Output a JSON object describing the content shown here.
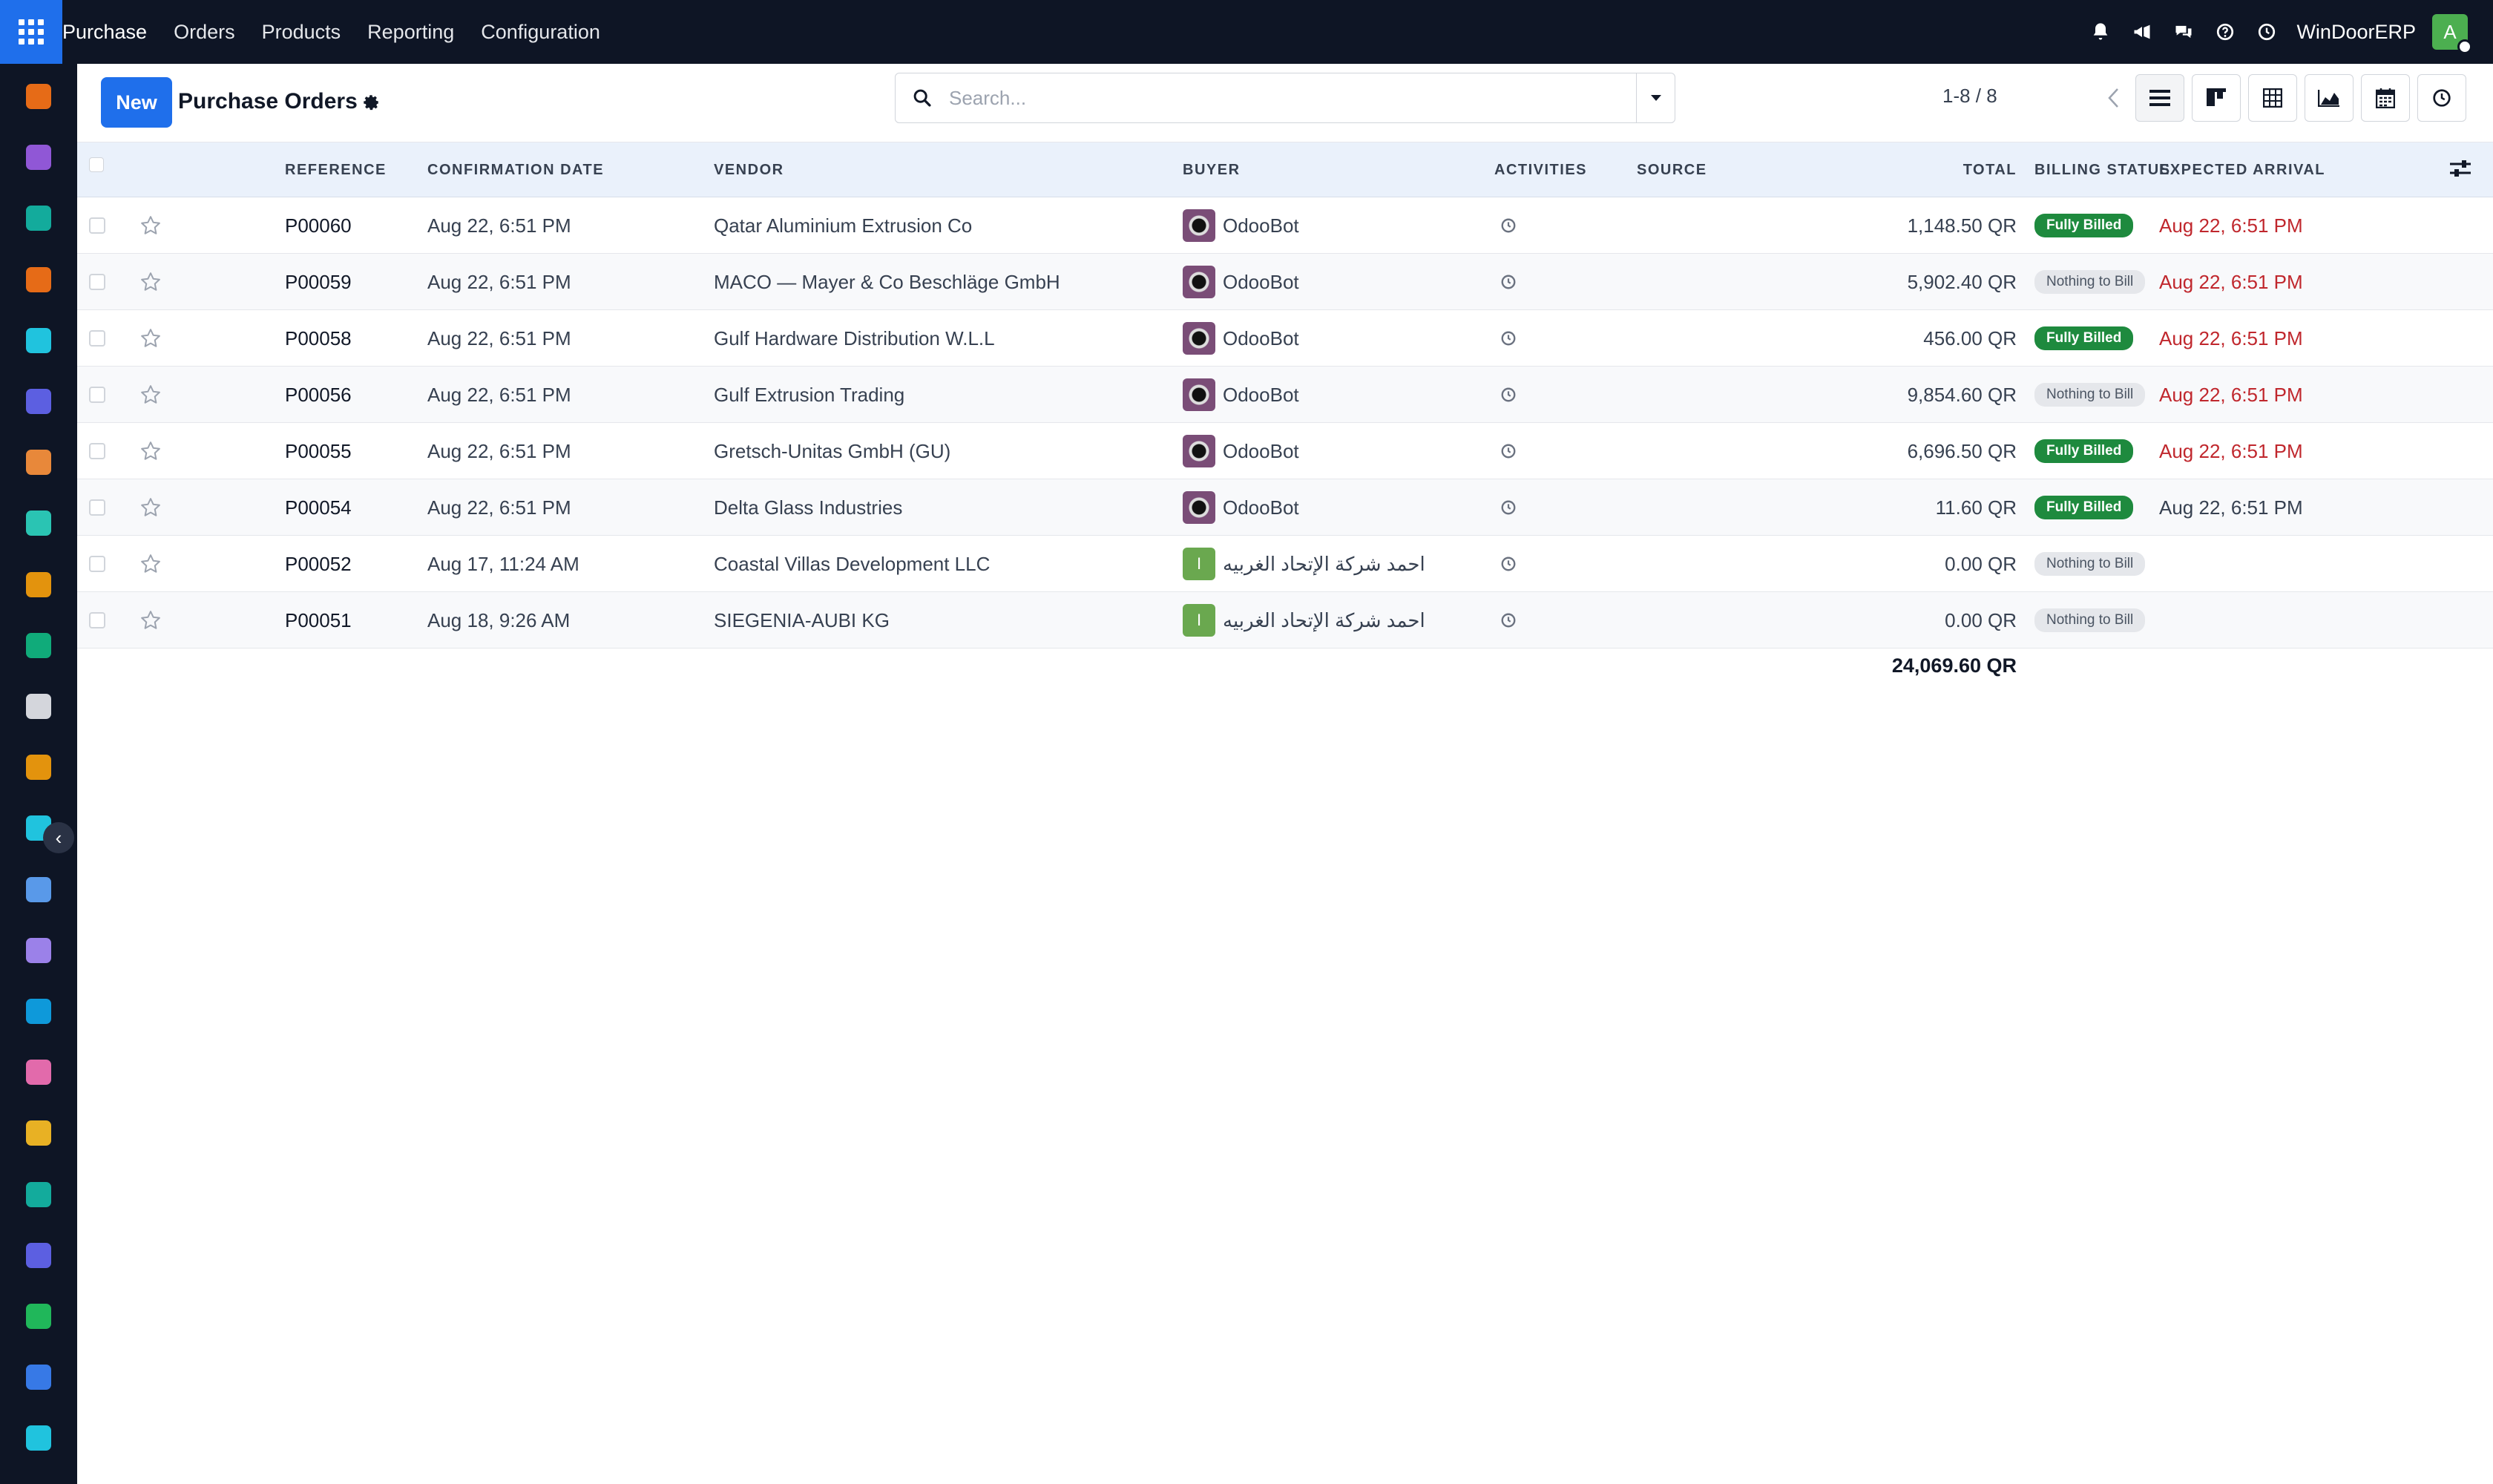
{
  "navbar": {
    "menu": [
      "Purchase",
      "Orders",
      "Products",
      "Reporting",
      "Configuration"
    ],
    "company": "WinDoorERP",
    "user_initial": "A",
    "icons": [
      "bell-icon",
      "megaphone-icon",
      "chat-icon",
      "help-icon",
      "clock-icon"
    ]
  },
  "sidebar": {
    "apps": [
      {
        "icon": "inventory-app-icon",
        "color": "#f97316"
      },
      {
        "icon": "contacts-app-icon",
        "color": "#9b5de5"
      },
      {
        "icon": "employees-app-icon",
        "color": "#14b8a6"
      },
      {
        "icon": "discuss-app-icon",
        "color": "#f97316"
      },
      {
        "icon": "website-app-icon",
        "color": "#22d3ee"
      },
      {
        "icon": "email-marketing-app-icon",
        "color": "#6366f1"
      },
      {
        "icon": "livechat-app-icon",
        "color": "#fb923c"
      },
      {
        "icon": "sales-app-icon",
        "color": "#2dd4bf"
      },
      {
        "icon": "dashboard-app-icon",
        "color": "#f59e0b"
      },
      {
        "icon": "hr-app-icon",
        "color": "#10b981"
      },
      {
        "icon": "product-app-icon",
        "color": "#e5e7eb"
      },
      {
        "icon": "manufacturing-app-icon",
        "color": "#f59e0b"
      },
      {
        "icon": "project-app-icon",
        "color": "#22d3ee"
      },
      {
        "icon": "knowledge-app-icon",
        "color": "#60a5fa"
      },
      {
        "icon": "documents-app-icon",
        "color": "#a78bfa"
      },
      {
        "icon": "invoicing-app-icon",
        "color": "#0ea5e9"
      },
      {
        "icon": "team-app-icon",
        "color": "#f472b6"
      },
      {
        "icon": "calendar-app-icon",
        "color": "#fbbf24"
      },
      {
        "icon": "sign-app-icon",
        "color": "#14b8a6"
      },
      {
        "icon": "spreadsheet-app-icon",
        "color": "#6366f1"
      },
      {
        "icon": "whatsapp-app-icon",
        "color": "#22c55e"
      },
      {
        "icon": "timer-app-icon",
        "color": "#3b82f6"
      },
      {
        "icon": "settings-app-icon",
        "color": "#22d3ee"
      }
    ]
  },
  "control": {
    "new_label": "New",
    "title": "Purchase Orders",
    "search_placeholder": "Search...",
    "pager": "1-8 / 8"
  },
  "table": {
    "columns": {
      "reference": "REFERENCE",
      "confirmation_date": "CONFIRMATION DATE",
      "vendor": "VENDOR",
      "buyer": "BUYER",
      "activities": "ACTIVITIES",
      "source": "SOURCE",
      "total": "TOTAL",
      "billing_status": "BILLING STATUS",
      "expected_arrival": "EXPECTED ARRIVAL"
    },
    "rows": [
      {
        "ref": "P00060",
        "date": "Aug 22, 6:51 PM",
        "vendor": "Qatar Aluminium Extrusion Co",
        "buyer": "OdooBot",
        "buyer_type": "bot",
        "total": "1,148.50 QR",
        "status": "Fully Billed",
        "status_type": "billed",
        "arrival": "Aug 22, 6:51 PM",
        "arrival_late": true
      },
      {
        "ref": "P00059",
        "date": "Aug 22, 6:51 PM",
        "vendor": "MACO — Mayer & Co Beschläge GmbH",
        "buyer": "OdooBot",
        "buyer_type": "bot",
        "total": "5,902.40 QR",
        "status": "Nothing to Bill",
        "status_type": "nothing",
        "arrival": "Aug 22, 6:51 PM",
        "arrival_late": true
      },
      {
        "ref": "P00058",
        "date": "Aug 22, 6:51 PM",
        "vendor": "Gulf Hardware Distribution W.L.L",
        "buyer": "OdooBot",
        "buyer_type": "bot",
        "total": "456.00 QR",
        "status": "Fully Billed",
        "status_type": "billed",
        "arrival": "Aug 22, 6:51 PM",
        "arrival_late": true
      },
      {
        "ref": "P00056",
        "date": "Aug 22, 6:51 PM",
        "vendor": "Gulf Extrusion Trading",
        "buyer": "OdooBot",
        "buyer_type": "bot",
        "total": "9,854.60 QR",
        "status": "Nothing to Bill",
        "status_type": "nothing",
        "arrival": "Aug 22, 6:51 PM",
        "arrival_late": true
      },
      {
        "ref": "P00055",
        "date": "Aug 22, 6:51 PM",
        "vendor": "Gretsch-Unitas GmbH (GU)",
        "buyer": "OdooBot",
        "buyer_type": "bot",
        "total": "6,696.50 QR",
        "status": "Fully Billed",
        "status_type": "billed",
        "arrival": "Aug 22, 6:51 PM",
        "arrival_late": true
      },
      {
        "ref": "P00054",
        "date": "Aug 22, 6:51 PM",
        "vendor": "Delta Glass Industries",
        "buyer": "OdooBot",
        "buyer_type": "bot",
        "total": "11.60 QR",
        "status": "Fully Billed",
        "status_type": "billed",
        "arrival": "Aug 22, 6:51 PM",
        "arrival_late": false
      },
      {
        "ref": "P00052",
        "date": "Aug 17, 11:24 AM",
        "vendor": "Coastal Villas Development LLC",
        "buyer": "احمد شركة الإتحاد الغربيه",
        "buyer_type": "user",
        "buyer_initial": "I",
        "total": "0.00 QR",
        "status": "Nothing to Bill",
        "status_type": "nothing",
        "arrival": "",
        "arrival_late": false
      },
      {
        "ref": "P00051",
        "date": "Aug 18, 9:26 AM",
        "vendor": "SIEGENIA-AUBI KG",
        "buyer": "احمد شركة الإتحاد الغربيه",
        "buyer_type": "user",
        "buyer_initial": "I",
        "total": "0.00 QR",
        "status": "Nothing to Bill",
        "status_type": "nothing",
        "arrival": "",
        "arrival_late": false
      }
    ],
    "grand_total": "24,069.60 QR"
  }
}
